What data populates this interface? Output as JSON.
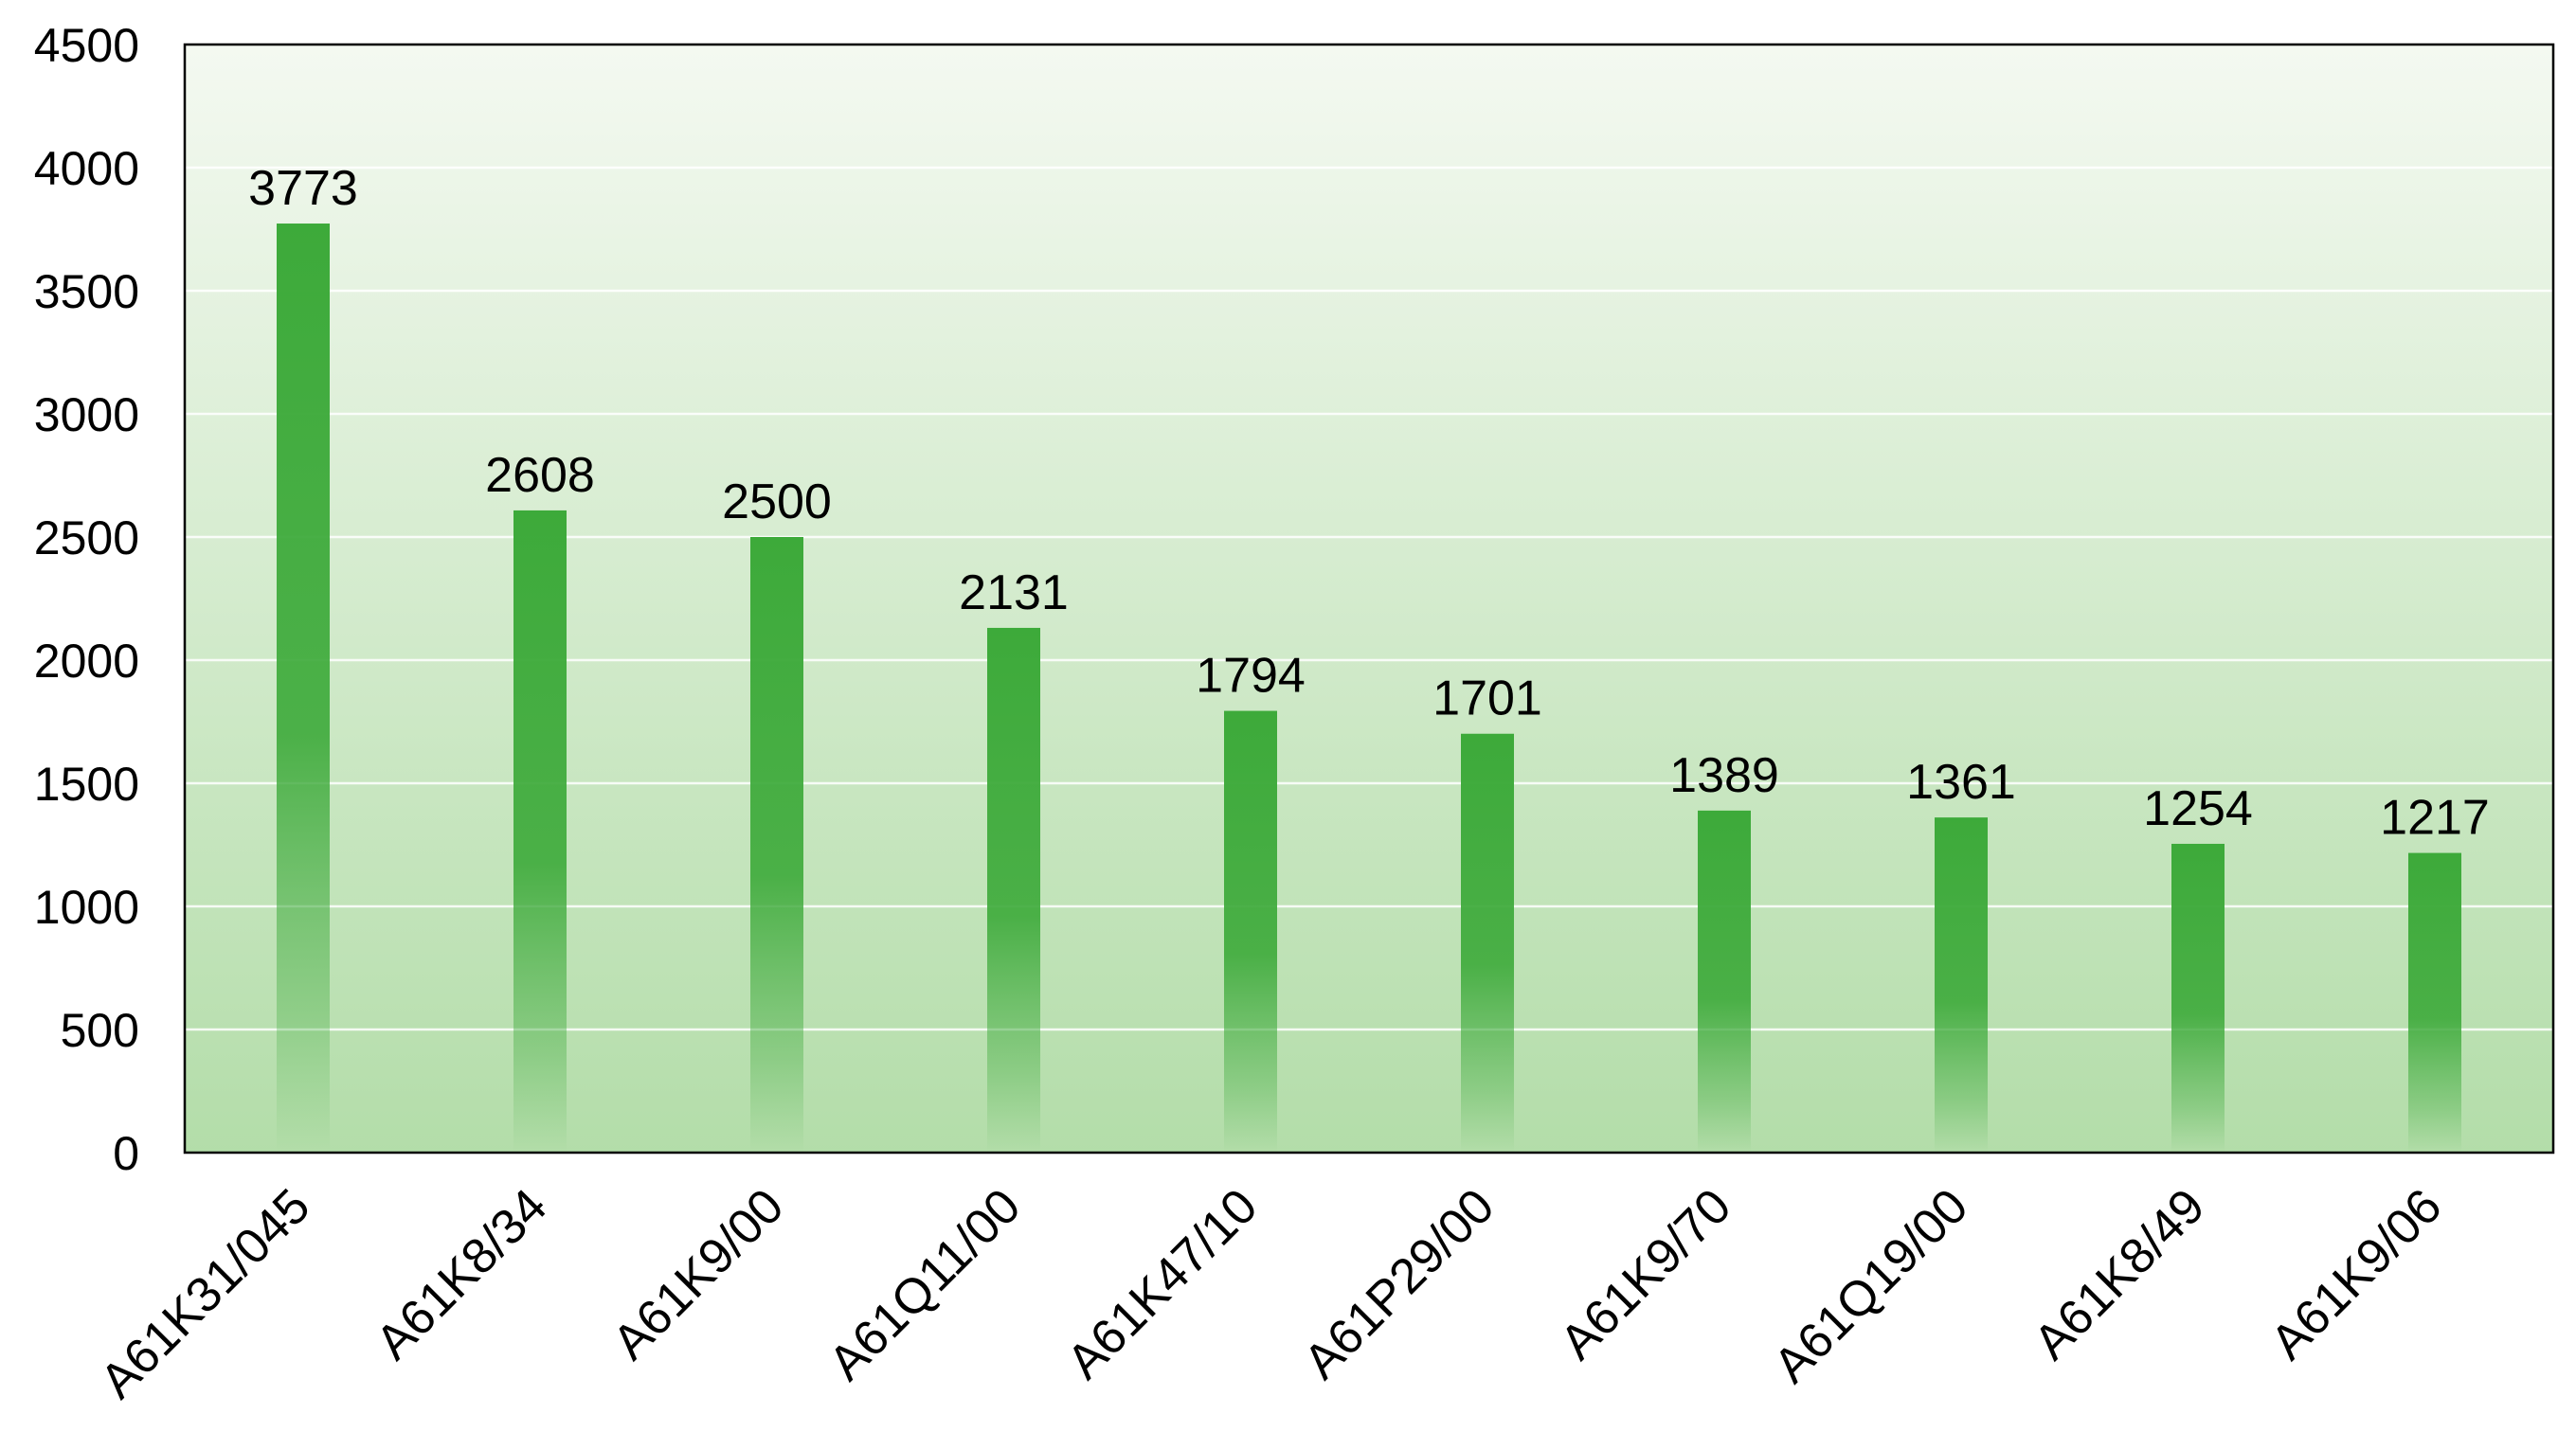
{
  "chart_data": {
    "type": "bar",
    "title": "",
    "xlabel": "",
    "ylabel": "",
    "categories": [
      "A61K31/045",
      "A61K8/34",
      "A61K9/00",
      "A61Q11/00",
      "A61K47/10",
      "A61P29/00",
      "A61K9/70",
      "A61Q19/00",
      "A61K8/49",
      "A61K9/06"
    ],
    "values": [
      3773,
      2608,
      2500,
      2131,
      1794,
      1701,
      1389,
      1361,
      1254,
      1217
    ],
    "ylim": [
      0,
      4500
    ],
    "yticks": [
      0,
      500,
      1000,
      1500,
      2000,
      2500,
      3000,
      3500,
      4000,
      4500
    ],
    "grid": true,
    "legend": "none",
    "colors": {
      "bar": "#3daa3a",
      "plot_bg_top": "#f4f9f1",
      "plot_bg_bottom": "#b3dda9",
      "grid": "#ffffff",
      "axis": "#000000"
    }
  }
}
